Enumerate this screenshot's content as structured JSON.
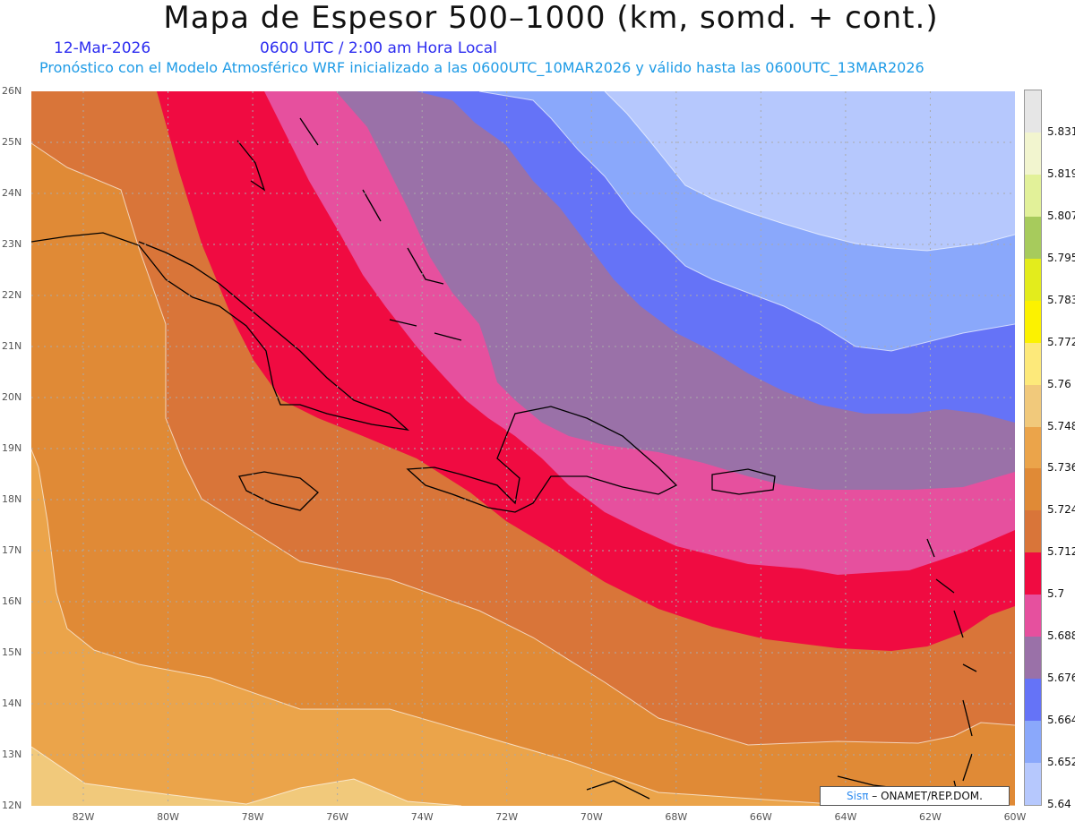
{
  "header": {
    "title": "Mapa de Espesor 500–1000 (km, somd. + cont.)",
    "date": "12-Mar-2026",
    "time": "0600 UTC / 2:00 am Hora Local",
    "subtitle": "Pronóstico con el Modelo Atmosférico WRF inicializado a las 0600UTC_10MAR2026 y válido hasta las  0600UTC_13MAR2026"
  },
  "axes": {
    "lat_labels": [
      "26N",
      "25N",
      "24N",
      "23N",
      "22N",
      "21N",
      "20N",
      "19N",
      "18N",
      "17N",
      "16N",
      "15N",
      "14N",
      "13N",
      "12N"
    ],
    "lon_labels": [
      "82W",
      "80W",
      "78W",
      "76W",
      "74W",
      "72W",
      "70W",
      "68W",
      "66W",
      "64W",
      "62W",
      "60W"
    ]
  },
  "colorbar": {
    "labels": [
      "5.831",
      "5.819",
      "5.807",
      "5.795",
      "5.783",
      "5.772",
      "5.76",
      "5.748",
      "5.736",
      "5.724",
      "5.712",
      "5.7",
      "5.688",
      "5.676",
      "5.664",
      "5.652",
      "5.64"
    ],
    "colors": [
      "#e6e6e6",
      "#f2f5cf",
      "#e2f199",
      "#a7cb5c",
      "#e3ec1c",
      "#fcf200",
      "#fde97a",
      "#f1c97b",
      "#eba44a",
      "#e08a36",
      "#d97539",
      "#f00b41",
      "#e6509e",
      "#9a71a8",
      "#6573f7",
      "#8aa8fb",
      "#b6c8fd"
    ],
    "map_fill_colors": {
      "light_tan": "#f1c97b",
      "light_orange": "#eba44a",
      "orange": "#e08a36",
      "dark_orange": "#d97539",
      "red": "#f00b41",
      "pink": "#e6509e",
      "purple": "#9a71a8",
      "blue": "#6573f7",
      "light_blue": "#8aa8fb",
      "pale_blue": "#b6c8fd"
    }
  },
  "credit": {
    "brand": "Sisπ",
    "org": "– ONAMET/REP.DOM."
  }
}
